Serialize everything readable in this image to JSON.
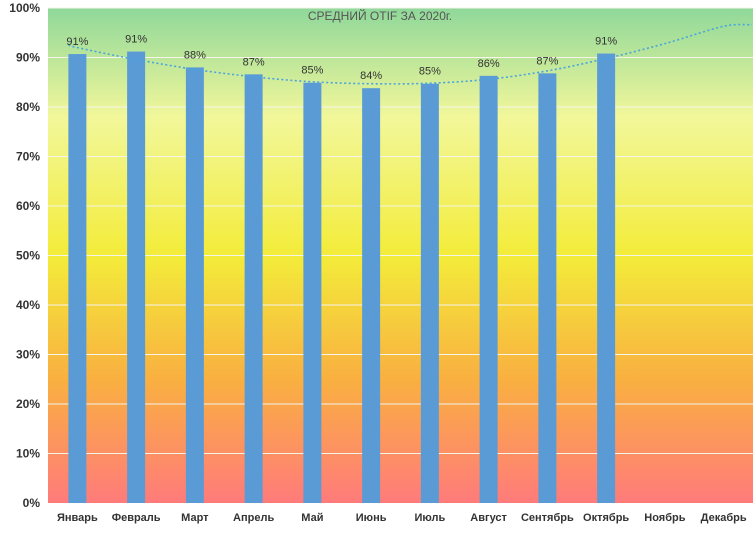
{
  "chart_data": {
    "type": "bar",
    "title": "СРЕДНИЙ OTIF ЗА 2020г.",
    "xlabel": "",
    "ylabel": "",
    "ylim": [
      0,
      100
    ],
    "ytick_step": 10,
    "yticks": [
      "0%",
      "10%",
      "20%",
      "30%",
      "40%",
      "50%",
      "60%",
      "70%",
      "80%",
      "90%",
      "100%"
    ],
    "categories": [
      "Январь",
      "Февраль",
      "Март",
      "Апрель",
      "Май",
      "Июнь",
      "Июль",
      "Август",
      "Сентябрь",
      "Октябрь",
      "Ноябрь",
      "Декабрь"
    ],
    "series": [
      {
        "name": "OTIF",
        "values": [
          90.7,
          91.2,
          88,
          86.6,
          84.9,
          83.8,
          84.7,
          86.3,
          86.8,
          90.8,
          null,
          null
        ],
        "labels": [
          "91%",
          "91%",
          "88%",
          "87%",
          "85%",
          "84%",
          "85%",
          "86%",
          "87%",
          "91%",
          "",
          ""
        ]
      }
    ],
    "trendline": {
      "type": "polynomial",
      "style": "dotted",
      "values": [
        92,
        89.6,
        87.6,
        86.1,
        85.1,
        84.7,
        84.8,
        85.6,
        87.3,
        89.8,
        92.8,
        96.3
      ]
    },
    "colors": {
      "bar": "#5b9bd5",
      "trendline": "#4aa3df",
      "gradient_top": "#8fd89a",
      "gradient_upper": "#f2f79a",
      "gradient_middle": "#f3ec3a",
      "gradient_lower": "#f9b040",
      "gradient_bottom": "#ff7b7b",
      "gridline": "#f4f4ea"
    },
    "legend": "none",
    "grid": true
  }
}
